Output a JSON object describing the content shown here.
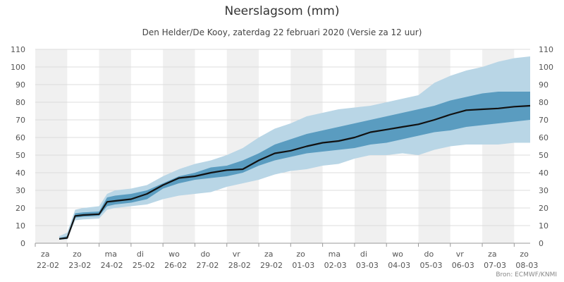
{
  "chart_data": {
    "type": "area",
    "title": "Neerslagsom (mm)",
    "subtitle": "Den Helder/De Kooy, zaterdag 22 februari 2020 (Versie za 12 uur)",
    "credits": "Bron: ECMWF/KNMI",
    "ylim": [
      0,
      110
    ],
    "y_ticks": [
      0,
      10,
      20,
      30,
      40,
      50,
      60,
      70,
      80,
      90,
      100,
      110
    ],
    "x_axis_range_days": [
      0,
      15.5
    ],
    "x_labels": [
      {
        "day": 0,
        "weekday": "za",
        "date": "22-02"
      },
      {
        "day": 1,
        "weekday": "zo",
        "date": "23-02"
      },
      {
        "day": 2,
        "weekday": "ma",
        "date": "24-02"
      },
      {
        "day": 3,
        "weekday": "di",
        "date": "25-02"
      },
      {
        "day": 4,
        "weekday": "wo",
        "date": "26-02"
      },
      {
        "day": 5,
        "weekday": "do",
        "date": "27-02"
      },
      {
        "day": 6,
        "weekday": "vr",
        "date": "28-02"
      },
      {
        "day": 7,
        "weekday": "za",
        "date": "29-02"
      },
      {
        "day": 8,
        "weekday": "zo",
        "date": "01-03"
      },
      {
        "day": 9,
        "weekday": "ma",
        "date": "02-03"
      },
      {
        "day": 10,
        "weekday": "di",
        "date": "03-03"
      },
      {
        "day": 11,
        "weekday": "wo",
        "date": "04-03"
      },
      {
        "day": 12,
        "weekday": "do",
        "date": "05-03"
      },
      {
        "day": 13,
        "weekday": "vr",
        "date": "06-03"
      },
      {
        "day": 14,
        "weekday": "za",
        "date": "07-03"
      },
      {
        "day": 15,
        "weekday": "zo",
        "date": "08-03"
      }
    ],
    "x": [
      0.75,
      1.0,
      1.25,
      1.5,
      2.0,
      2.25,
      2.5,
      3.0,
      3.5,
      4.0,
      4.5,
      5.0,
      5.5,
      6.0,
      6.5,
      7.0,
      7.5,
      8.0,
      8.5,
      9.0,
      9.5,
      10.0,
      10.5,
      11.0,
      11.5,
      12.0,
      12.5,
      13.0,
      13.5,
      14.0,
      14.5,
      15.0,
      15.5
    ],
    "series": [
      {
        "role": "band-outer-upper",
        "color": "#b9d6e6",
        "values": [
          4,
          6,
          19,
          20,
          21,
          28,
          30,
          31,
          33,
          38,
          42,
          45,
          47,
          50,
          54,
          60,
          65,
          68,
          72,
          74,
          76,
          77,
          78,
          80,
          82,
          84,
          91,
          95,
          98,
          100,
          103,
          105,
          106
        ]
      },
      {
        "role": "band-inner-upper",
        "color": "#5a9cc0",
        "values": [
          3,
          4,
          17,
          17.5,
          18,
          26,
          27,
          28,
          30,
          34,
          38,
          40,
          43,
          44,
          47,
          51,
          56,
          59,
          62,
          64,
          66,
          68,
          70,
          72,
          74,
          76,
          78,
          81,
          83,
          85,
          86,
          86,
          86
        ]
      },
      {
        "role": "median",
        "name": "",
        "color": "#111111",
        "values": [
          2.5,
          3,
          15.5,
          16,
          16.5,
          23.5,
          24,
          25,
          28,
          33,
          37,
          38,
          40,
          41.5,
          42,
          47,
          51,
          52.5,
          55,
          57,
          58,
          60,
          63,
          64.5,
          66,
          67.5,
          70,
          73,
          75.5,
          76,
          76.5,
          77.5,
          78
        ]
      },
      {
        "role": "band-inner-lower",
        "color": "#5a9cc0",
        "values": [
          2,
          2.5,
          14.5,
          15,
          15.5,
          21,
          22,
          23,
          25,
          31,
          34,
          36,
          37,
          38,
          40,
          44,
          47,
          49,
          51,
          52,
          53,
          54,
          56,
          57,
          59,
          61,
          63,
          64,
          66,
          67,
          68,
          69,
          70
        ]
      },
      {
        "role": "band-outer-lower",
        "color": "#b9d6e6",
        "values": [
          2,
          2.2,
          13,
          13.5,
          14,
          19,
          20,
          21,
          22,
          25,
          27,
          28,
          29,
          32,
          34,
          36,
          39,
          41,
          42,
          44,
          45,
          48,
          50,
          50,
          51,
          50,
          53,
          55,
          56,
          56,
          56,
          57,
          57
        ]
      }
    ],
    "alternate_day_shading": true,
    "grid": true,
    "legend": "none",
    "colors": {
      "stripe": "#f0f0f0",
      "grid": "#dddddd",
      "outer_band": "#b9d6e6",
      "inner_band": "#5a9cc0",
      "median": "#111111"
    }
  }
}
